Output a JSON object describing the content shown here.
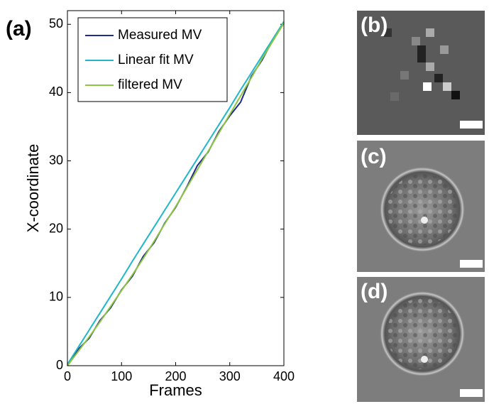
{
  "chart_data": {
    "type": "line",
    "panel_label": "(a)",
    "xlabel": "Frames",
    "ylabel": "X-coordinate",
    "x": [
      0,
      20,
      40,
      60,
      80,
      100,
      120,
      140,
      160,
      180,
      200,
      220,
      240,
      260,
      280,
      300,
      320,
      340,
      360,
      380,
      400
    ],
    "series": [
      {
        "name": "Measured MV",
        "color": "#1f2a8c",
        "values": [
          0,
          2.4,
          4.0,
          6.6,
          8.5,
          11.1,
          13.1,
          16.0,
          18.0,
          20.9,
          23.2,
          26.1,
          29.3,
          31.3,
          34.3,
          36.6,
          38.6,
          42.4,
          44.8,
          47.8,
          50.2
        ]
      },
      {
        "name": "Linear fit MV",
        "color": "#1fb7c9",
        "values": [
          0.2,
          2.7,
          5.2,
          7.7,
          10.2,
          12.7,
          15.3,
          17.8,
          20.3,
          22.8,
          25.3,
          27.8,
          30.3,
          32.8,
          35.3,
          37.8,
          40.4,
          42.9,
          45.4,
          47.9,
          50.4
        ]
      },
      {
        "name": "filtered MV",
        "color": "#8cc63f",
        "values": [
          0,
          2.1,
          4.2,
          6.4,
          8.7,
          11.0,
          13.3,
          15.7,
          18.2,
          20.8,
          23.3,
          26.0,
          28.7,
          31.4,
          34.1,
          36.8,
          39.5,
          42.2,
          45.0,
          47.6,
          50.2
        ]
      }
    ],
    "xlim": [
      0,
      400
    ],
    "ylim": [
      0,
      52
    ],
    "xticks": [
      0,
      100,
      200,
      300,
      400
    ],
    "yticks": [
      0,
      10,
      20,
      30,
      40,
      50
    ],
    "legend": "upper-left"
  },
  "panels": [
    "(b)",
    "(c)",
    "(d)"
  ]
}
